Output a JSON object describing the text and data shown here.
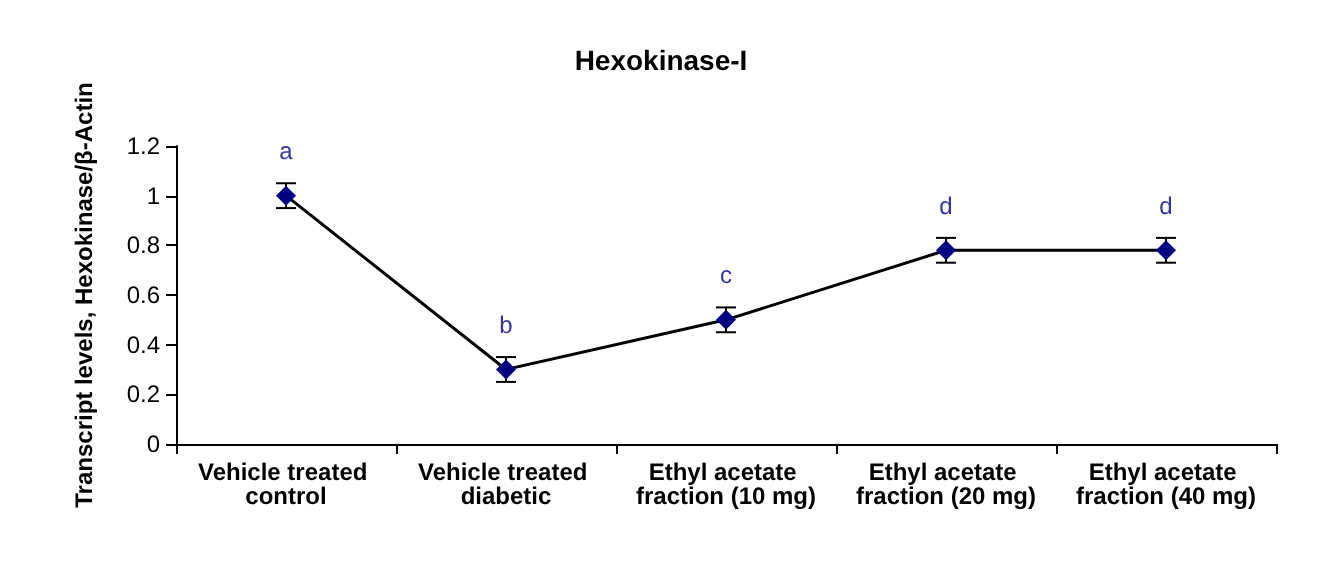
{
  "chart_data": {
    "type": "line",
    "title": "Hexokinase-I",
    "ylabel": "Transcript levels, Hexokinase/β-Actin",
    "categories": [
      "Vehicle treated control",
      "Vehicle treated diabetic",
      "Ethyl acetate fraction (10 mg)",
      "Ethyl acetate fraction (20 mg)",
      "Ethyl acetate fraction (40 mg)"
    ],
    "series": [
      {
        "color": "#000080",
        "values": [
          1.0,
          0.3,
          0.5,
          0.78,
          0.78
        ],
        "errors": [
          0.05,
          0.05,
          0.05,
          0.05,
          0.05
        ]
      }
    ],
    "ylim": [
      0,
      1.2
    ],
    "yticks": [
      0,
      0.2,
      0.4,
      0.6,
      0.8,
      1,
      1.2
    ],
    "grid": false,
    "marker": "diamond",
    "line_style": "solid",
    "annotations": [
      "a",
      "b",
      "c",
      "d",
      "d"
    ]
  }
}
